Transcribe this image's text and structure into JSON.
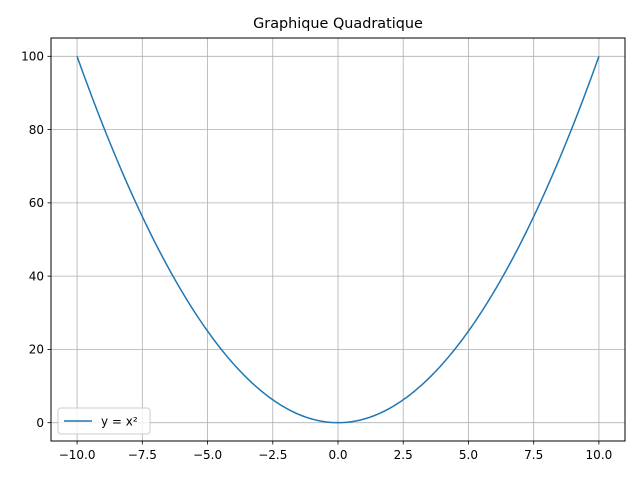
{
  "chart_data": {
    "type": "line",
    "title": "Graphique Quadratique",
    "xlabel": "",
    "ylabel": "",
    "xlim": [
      -11.0,
      11.0
    ],
    "ylim": [
      -5.0,
      105.0
    ],
    "grid": true,
    "legend_position": "lower-left",
    "x_ticks": [
      -10.0,
      -7.5,
      -5.0,
      -2.5,
      0.0,
      2.5,
      5.0,
      7.5,
      10.0
    ],
    "x_tick_labels": [
      "−10.0",
      "−7.5",
      "−5.0",
      "−2.5",
      "0.0",
      "2.5",
      "5.0",
      "7.5",
      "10.0"
    ],
    "y_ticks": [
      0,
      20,
      40,
      60,
      80,
      100
    ],
    "y_tick_labels": [
      "0",
      "20",
      "40",
      "60",
      "80",
      "100"
    ],
    "series": [
      {
        "name": "y = x²",
        "color": "#1f77b4",
        "x": [
          -10,
          -9,
          -8,
          -7,
          -6,
          -5,
          -4,
          -3,
          -2,
          -1,
          0,
          1,
          2,
          3,
          4,
          5,
          6,
          7,
          8,
          9,
          10
        ],
        "y": [
          100,
          81,
          64,
          49,
          36,
          25,
          16,
          9,
          4,
          1,
          0,
          1,
          4,
          9,
          16,
          25,
          36,
          49,
          64,
          81,
          100
        ]
      }
    ]
  }
}
